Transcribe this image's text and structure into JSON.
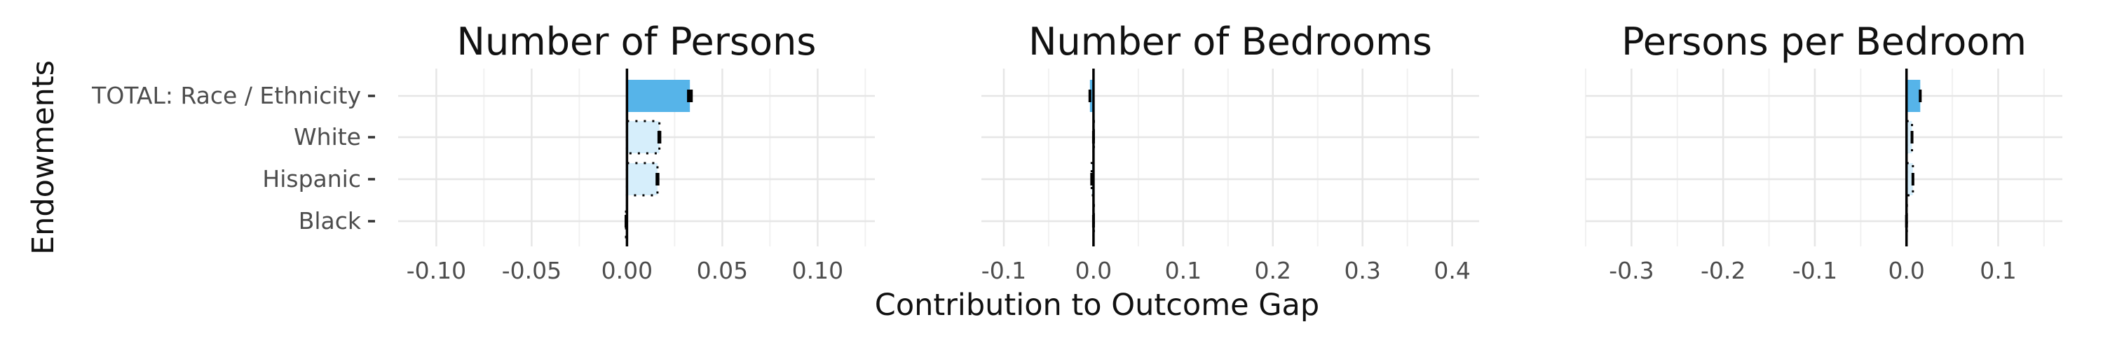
{
  "chart_data": {
    "type": "bar",
    "orientation": "horizontal",
    "ylabel": "Endowments",
    "xlabel": "Contribution to Outcome Gap",
    "categories": [
      "TOTAL: Race / Ethnicity",
      "White",
      "Hispanic",
      "Black"
    ],
    "colors": {
      "total_fill": "#56B4E9",
      "component_fill": "#D6EEFB",
      "error_bar": "#000000",
      "zero_line": "#000000"
    },
    "grid": true,
    "panels": [
      {
        "title": "Number of Persons",
        "xlim": [
          -0.12,
          0.13
        ],
        "xticks": [
          -0.1,
          -0.05,
          0.0,
          0.05,
          0.1
        ],
        "xtick_labels": [
          "-0.10",
          "-0.05",
          "0.00",
          "0.05",
          "0.10"
        ],
        "values": [
          0.033,
          0.017,
          0.016,
          -0.0005
        ],
        "errors": [
          0.0015,
          0.001,
          0.001,
          0.0003
        ]
      },
      {
        "title": "Number of Bedrooms",
        "xlim": [
          -0.125,
          0.43
        ],
        "xticks": [
          -0.1,
          0.0,
          0.1,
          0.2,
          0.3,
          0.4
        ],
        "xtick_labels": [
          "-0.1",
          "0.0",
          "0.1",
          "0.2",
          "0.3",
          "0.4"
        ],
        "values": [
          -0.004,
          0.0,
          -0.002,
          0.0
        ],
        "errors": [
          0.0015,
          0.001,
          0.0015,
          0.001
        ]
      },
      {
        "title": "Persons per Bedroom",
        "xlim": [
          -0.35,
          0.17
        ],
        "xticks": [
          -0.3,
          -0.2,
          -0.1,
          0.0,
          0.1
        ],
        "xtick_labels": [
          "-0.3",
          "-0.2",
          "-0.1",
          "0.0",
          "0.1"
        ],
        "values": [
          0.015,
          0.006,
          0.007,
          0.0
        ],
        "errors": [
          0.0015,
          0.001,
          0.001,
          0.0005
        ]
      }
    ]
  }
}
